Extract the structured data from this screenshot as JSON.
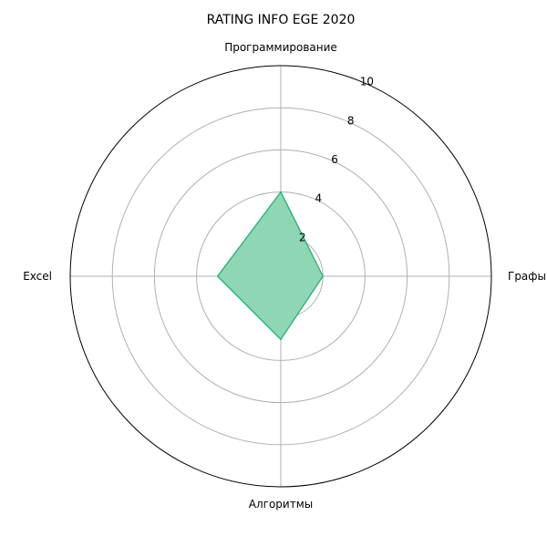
{
  "chart_data": {
    "type": "radar",
    "title": "RATING INFO EGE 2020",
    "categories": [
      "Программирование",
      "Графы",
      "Алгоритмы",
      "Excel"
    ],
    "series": [
      {
        "values": [
          4,
          2,
          3,
          3
        ],
        "color": "#21b26f",
        "fill_color": "#8fd6b5"
      }
    ],
    "rlim": [
      0,
      10
    ],
    "r_ticks": [
      2,
      4,
      6,
      8,
      10
    ],
    "grid": true,
    "grid_color": "#b0b0b0",
    "outline_color": "#000000"
  }
}
